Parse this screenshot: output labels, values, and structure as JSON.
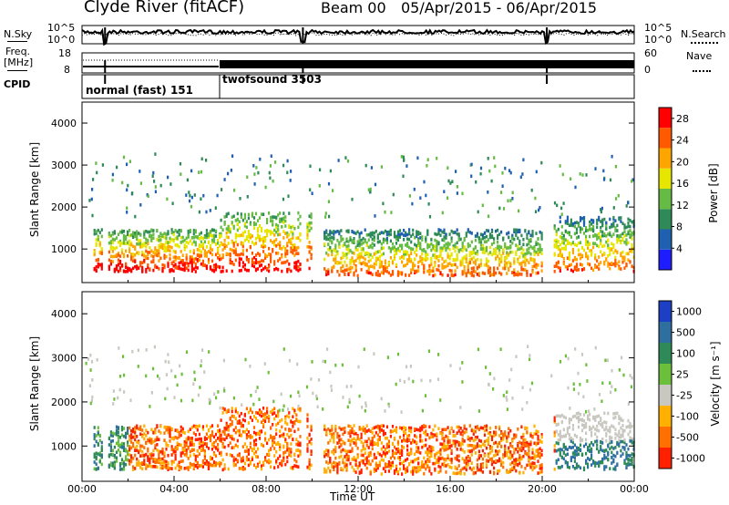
{
  "header": {
    "station": "Clyde River (fitACF)",
    "beam": "Beam 00",
    "date_range": "05/Apr/2015 - 06/Apr/2015"
  },
  "top_panels": {
    "nsky_label": "N.Sky",
    "nsky_ticks": [
      "10^5",
      "10^0"
    ],
    "nsearch_label": "N.Search",
    "nsearch_ticks": [
      "10^5",
      "10^0"
    ],
    "freq_label": "Freq.",
    "freq_unit": "[MHz]",
    "freq_ticks": [
      "18",
      "8"
    ],
    "nave_label": "Nave",
    "nave_ticks": [
      "60",
      "0"
    ],
    "cpid_label": "CPID",
    "cpid_segments": [
      {
        "name": "normal (fast) 151",
        "start_h": 0,
        "end_h": 6
      },
      {
        "name": "twofsound 3503",
        "start_h": 6,
        "end_h": 24
      }
    ],
    "data_gaps_h": [
      1.0,
      9.6,
      20.2
    ]
  },
  "chart_data": [
    {
      "type": "heatmap",
      "title": "",
      "xlabel": "",
      "ylabel": "Slant Range [km]",
      "xlim_hours": [
        0,
        24
      ],
      "ylim_km": [
        200,
        4500
      ],
      "yticks": [
        1000,
        2000,
        3000,
        4000
      ],
      "colorbar": {
        "label": "Power [dB]",
        "ticks": [
          4,
          8,
          12,
          16,
          20,
          24,
          28
        ],
        "range": [
          0,
          30
        ],
        "colors": [
          "#1d1dff",
          "#2060b0",
          "#2e8b57",
          "#66bb44",
          "#e6e600",
          "#ffa500",
          "#ff5a00",
          "#ff0000"
        ]
      },
      "bands_km": [
        {
          "start_h": 0.5,
          "end_h": 6,
          "lo": 500,
          "hi": 1500,
          "level": "strong"
        },
        {
          "start_h": 6,
          "end_h": 10,
          "lo": 500,
          "hi": 1900,
          "level": "strong"
        },
        {
          "start_h": 10.5,
          "end_h": 20,
          "lo": 400,
          "hi": 1500,
          "level": "medium"
        },
        {
          "start_h": 20.5,
          "end_h": 24,
          "lo": 500,
          "hi": 1800,
          "level": "medium"
        }
      ]
    },
    {
      "type": "heatmap",
      "title": "",
      "xlabel": "Time UT",
      "ylabel": "Slant Range [km]",
      "xlim_hours": [
        0,
        24
      ],
      "ylim_km": [
        200,
        4500
      ],
      "xtick_labels": [
        "00:00",
        "04:00",
        "08:00",
        "12:00",
        "16:00",
        "20:00",
        "00:00"
      ],
      "yticks": [
        1000,
        2000,
        3000,
        4000
      ],
      "colorbar": {
        "label": "Velocity [m s⁻¹]",
        "ticks": [
          "1000",
          "500",
          "100",
          "25",
          "-25",
          "-100",
          "-500",
          "-1000"
        ],
        "colors": [
          "#1d3fc4",
          "#2f6fa0",
          "#2e8b57",
          "#6bbf3a",
          "#c8c8c0",
          "#ffb000",
          "#ff7000",
          "#ff2000"
        ]
      }
    }
  ]
}
